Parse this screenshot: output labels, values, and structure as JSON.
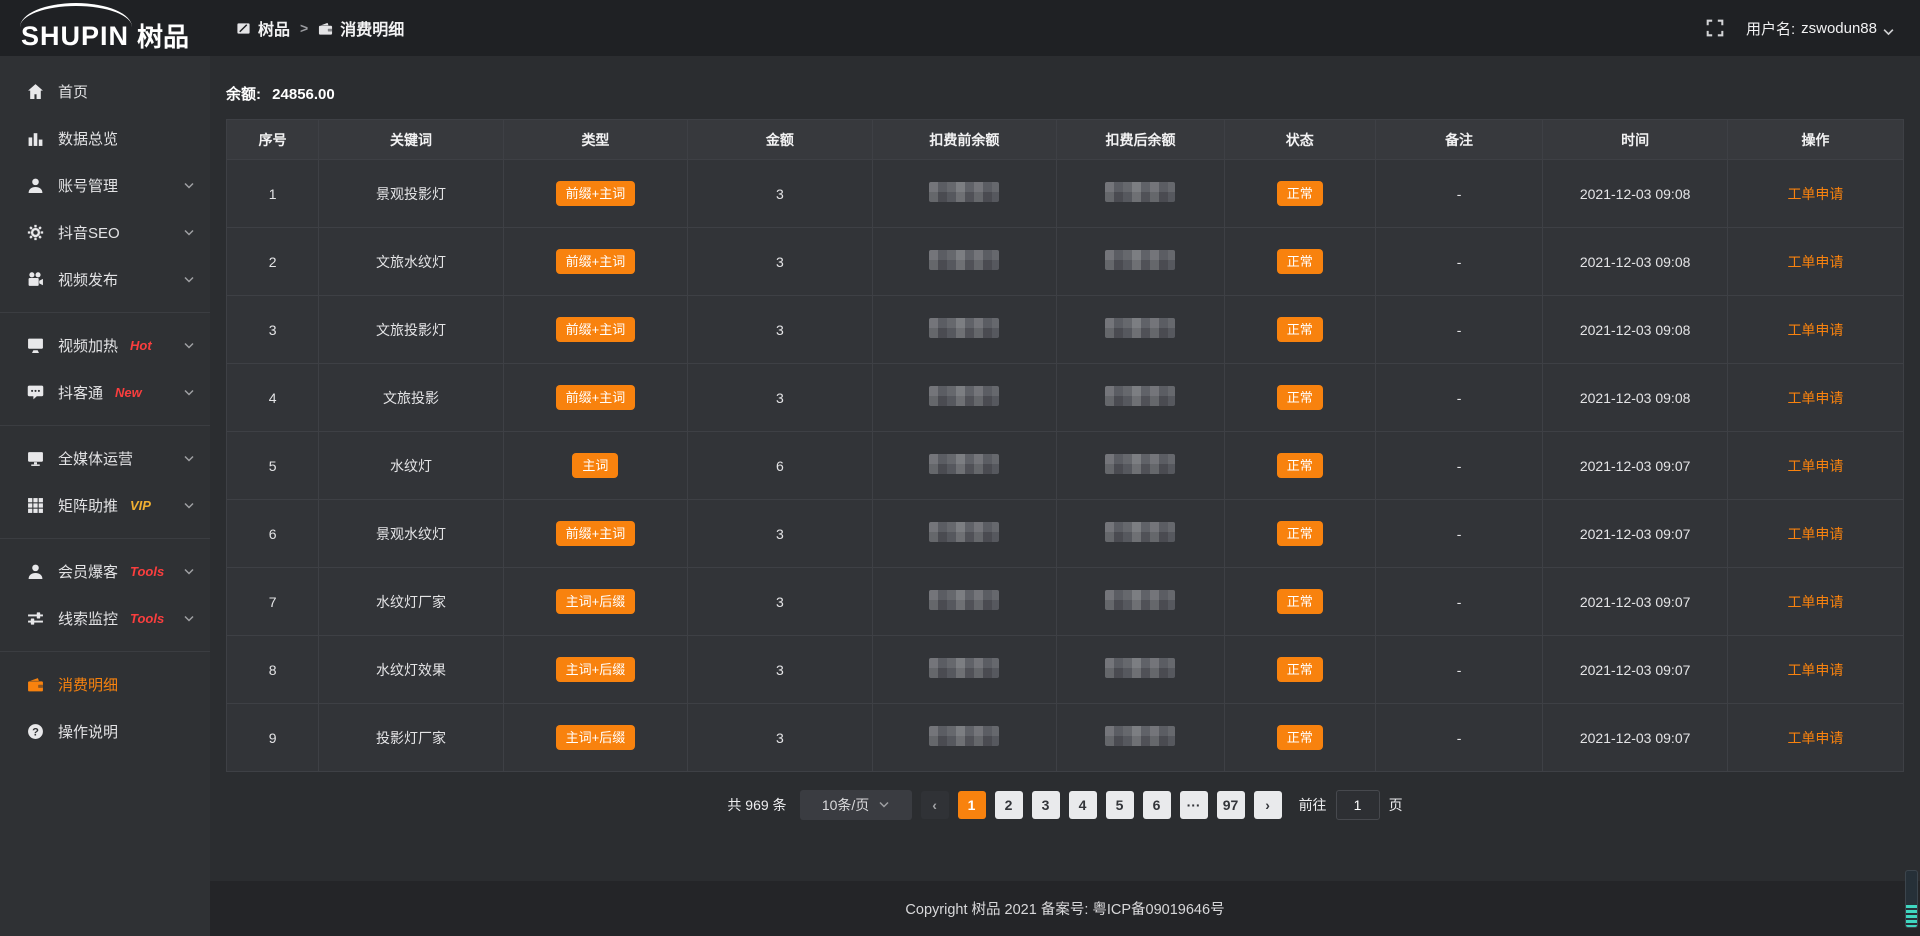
{
  "app": {
    "logo_en": "SHUPIN",
    "logo_cn": "树品"
  },
  "topbar": {
    "breadcrumb": [
      {
        "icon": "board-icon",
        "label": "树品"
      },
      {
        "icon": "wallet-icon",
        "label": "消费明细"
      }
    ],
    "separator": ">",
    "username_label": "用户名:",
    "username": "zswodun88"
  },
  "sidebar": {
    "items": [
      {
        "name": "home",
        "icon": "home-icon",
        "label": "首页"
      },
      {
        "name": "data-overview",
        "icon": "bar-chart-icon",
        "label": "数据总览"
      },
      {
        "name": "account-manage",
        "icon": "user-icon",
        "label": "账号管理",
        "chevron": true
      },
      {
        "name": "douyin-seo",
        "icon": "gear-icon",
        "label": "抖音SEO",
        "chevron": true
      },
      {
        "name": "video-publish",
        "icon": "camera-icon",
        "label": "视频发布",
        "chevron": true
      },
      {
        "divider": true
      },
      {
        "name": "video-heat",
        "icon": "monitor-icon",
        "label": "视频加热",
        "tag": "Hot",
        "tag_color": "red",
        "chevron": true
      },
      {
        "name": "douketong",
        "icon": "chat-icon",
        "label": "抖客通",
        "tag": "New",
        "tag_color": "red",
        "chevron": true
      },
      {
        "divider": true
      },
      {
        "name": "media-operation",
        "icon": "display-icon",
        "label": "全媒体运营",
        "chevron": true
      },
      {
        "name": "matrix-boost",
        "icon": "grid-icon",
        "label": "矩阵助推",
        "tag": "VIP",
        "tag_color": "gold",
        "chevron": true
      },
      {
        "divider": true
      },
      {
        "name": "member-burst",
        "icon": "user-icon",
        "label": "会员爆客",
        "tag": "Tools",
        "tag_color": "red",
        "chevron": true
      },
      {
        "name": "clue-monitor",
        "icon": "sliders-icon",
        "label": "线索监控",
        "tag": "Tools",
        "tag_color": "red",
        "chevron": true
      },
      {
        "divider": true
      },
      {
        "name": "consume-detail",
        "icon": "wallet-icon",
        "label": "消费明细",
        "active": true
      },
      {
        "name": "guide",
        "icon": "question-icon",
        "label": "操作说明"
      }
    ]
  },
  "main": {
    "balance_label": "余额:",
    "balance_value": "24856.00"
  },
  "table": {
    "columns": [
      "序号",
      "关键词",
      "类型",
      "金额",
      "扣费前余额",
      "扣费后余额",
      "状态",
      "备注",
      "时间",
      "操作"
    ],
    "redacted_columns": [
      "扣费前余额",
      "扣费后余额"
    ],
    "rows": [
      {
        "index": "1",
        "keyword": "景观投影灯",
        "type": "前缀+主词",
        "amount": "3",
        "status": "正常",
        "remark": "-",
        "time": "2021-12-03 09:08",
        "action": "工单申请"
      },
      {
        "index": "2",
        "keyword": "文旅水纹灯",
        "type": "前缀+主词",
        "amount": "3",
        "status": "正常",
        "remark": "-",
        "time": "2021-12-03 09:08",
        "action": "工单申请"
      },
      {
        "index": "3",
        "keyword": "文旅投影灯",
        "type": "前缀+主词",
        "amount": "3",
        "status": "正常",
        "remark": "-",
        "time": "2021-12-03 09:08",
        "action": "工单申请"
      },
      {
        "index": "4",
        "keyword": "文旅投影",
        "type": "前缀+主词",
        "amount": "3",
        "status": "正常",
        "remark": "-",
        "time": "2021-12-03 09:08",
        "action": "工单申请"
      },
      {
        "index": "5",
        "keyword": "水纹灯",
        "type": "主词",
        "amount": "6",
        "status": "正常",
        "remark": "-",
        "time": "2021-12-03 09:07",
        "action": "工单申请"
      },
      {
        "index": "6",
        "keyword": "景观水纹灯",
        "type": "前缀+主词",
        "amount": "3",
        "status": "正常",
        "remark": "-",
        "time": "2021-12-03 09:07",
        "action": "工单申请"
      },
      {
        "index": "7",
        "keyword": "水纹灯厂家",
        "type": "主词+后缀",
        "amount": "3",
        "status": "正常",
        "remark": "-",
        "time": "2021-12-03 09:07",
        "action": "工单申请"
      },
      {
        "index": "8",
        "keyword": "水纹灯效果",
        "type": "主词+后缀",
        "amount": "3",
        "status": "正常",
        "remark": "-",
        "time": "2021-12-03 09:07",
        "action": "工单申请"
      },
      {
        "index": "9",
        "keyword": "投影灯厂家",
        "type": "主词+后缀",
        "amount": "3",
        "status": "正常",
        "remark": "-",
        "time": "2021-12-03 09:07",
        "action": "工单申请"
      }
    ]
  },
  "pagination": {
    "total": "共 969 条",
    "page_size": "10条/页",
    "prev": "‹",
    "pages": [
      "1",
      "2",
      "3",
      "4",
      "5",
      "6",
      "···",
      "97"
    ],
    "active": "1",
    "next": "›",
    "goto_label": "前往",
    "goto_value": "1",
    "unit": "页"
  },
  "footer": {
    "copyright": "Copyright 树品 2021 备案号: 粤ICP备09019646号"
  },
  "colors": {
    "accent": "#f8820e",
    "tag_hot": "#fa3e3e",
    "tag_vip": "#f0b032"
  }
}
